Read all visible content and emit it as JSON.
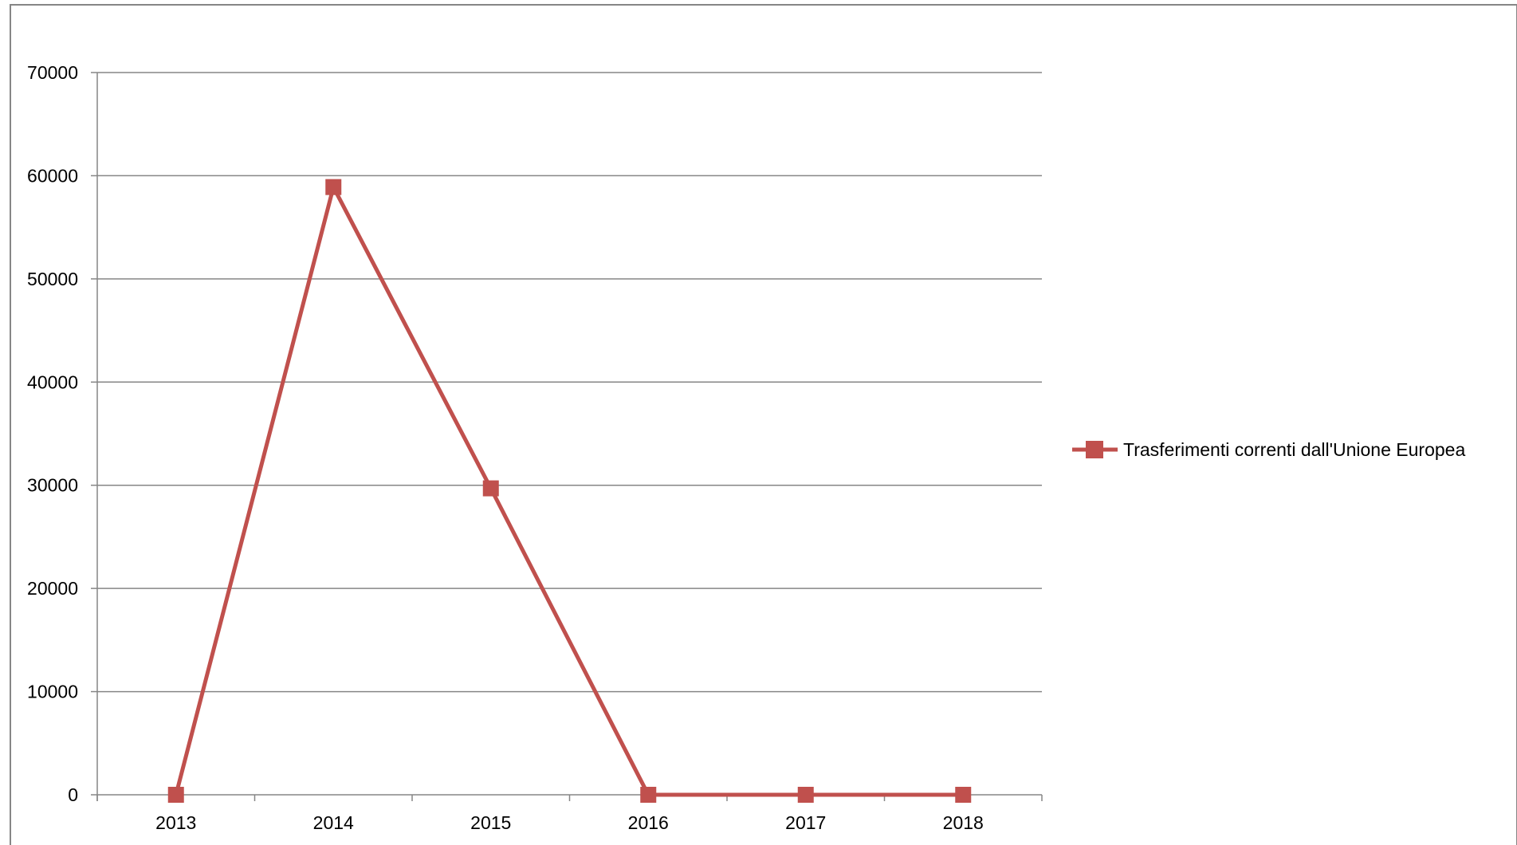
{
  "chart_data": {
    "type": "line",
    "title": "",
    "xlabel": "",
    "ylabel": "",
    "categories": [
      "2013",
      "2014",
      "2015",
      "2016",
      "2017",
      "2018"
    ],
    "series": [
      {
        "name": "Trasferimenti correnti dall'Unione Europea",
        "values": [
          0,
          58900,
          29700,
          0,
          0,
          0
        ],
        "color": "#C0504D",
        "marker": "square"
      }
    ],
    "ylim": [
      0,
      70000
    ],
    "yticks": [
      "0",
      "10000",
      "20000",
      "30000",
      "40000",
      "50000",
      "60000",
      "70000"
    ],
    "grid": true,
    "legend_position": "right",
    "colors": {
      "gridline": "#868686",
      "axis": "#868686",
      "frame": "#868686"
    }
  }
}
